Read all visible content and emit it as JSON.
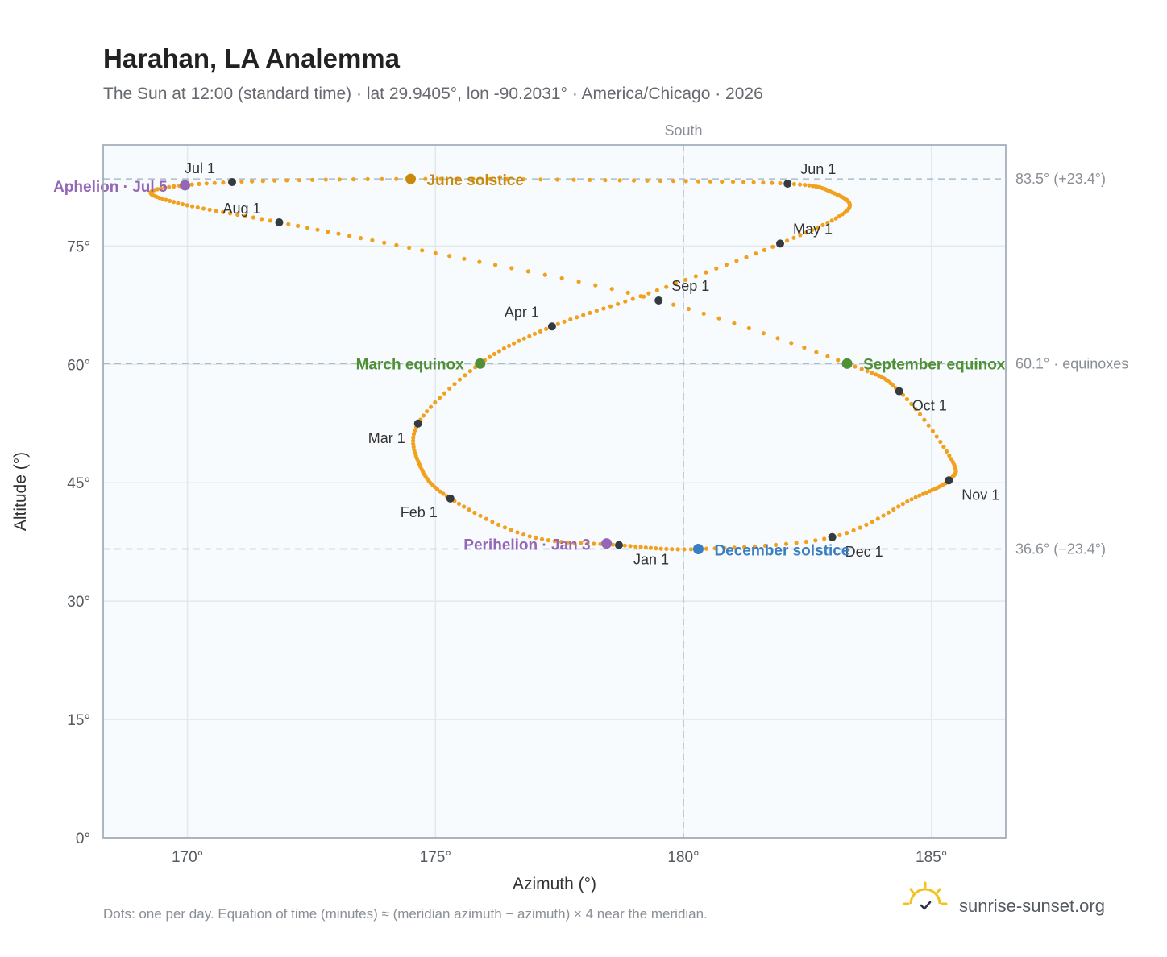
{
  "title": "Harahan, LA Analemma",
  "subtitle": "The Sun at 12:00 (standard time) · lat 29.9405°, lon -90.2031° · America/Chicago · 2026",
  "footnote": "Dots: one per day. Equation of time (minutes) ≈ (meridian azimuth − azimuth) × 4 near the meridian.",
  "brand": {
    "name": "sunrise-sunset.org",
    "icon": "sun-check-logo-icon"
  },
  "colors": {
    "curve": "#f2a11f",
    "month_marker": "#333a40",
    "june_solstice": "#c98a0c",
    "december_solstice": "#3a7ec2",
    "equinox": "#4f8f35",
    "apsis": "#9466b6",
    "plot_bg": "#f8fbfd",
    "grid": "#e1e8ee",
    "ref_line": "#a9bccb"
  },
  "chart_data": {
    "type": "scatter",
    "xlabel": "Azimuth (°)",
    "ylabel": "Altitude (°)",
    "xlim": [
      168.3,
      186.5
    ],
    "ylim": [
      0,
      87.8
    ],
    "x_ticks": [
      170,
      175,
      180,
      185
    ],
    "x_tick_labels": [
      "170°",
      "175°",
      "180°",
      "185°"
    ],
    "y_ticks": [
      0,
      15,
      30,
      45,
      60,
      75
    ],
    "y_tick_labels": [
      "0°",
      "15°",
      "30°",
      "45°",
      "60°",
      "75°"
    ],
    "grid": true,
    "meridian": {
      "azimuth": 180,
      "label": "South"
    },
    "reference_lines": [
      {
        "altitude": 83.5,
        "label": "83.5° (+23.4°)"
      },
      {
        "altitude": 60.1,
        "label": "60.1° · equinoxes"
      },
      {
        "altitude": 36.6,
        "label": "36.6° (−23.4°)"
      }
    ],
    "series": [
      {
        "points": [
          [
            178.7,
            37.1
          ],
          [
            176.9,
            38.2
          ],
          [
            175.3,
            43.0
          ],
          [
            174.7,
            47.0
          ],
          [
            174.65,
            52.5
          ],
          [
            175.9,
            60.1
          ],
          [
            177.35,
            64.8
          ],
          [
            179.3,
            69.0
          ],
          [
            181.95,
            75.3
          ],
          [
            183.3,
            79.5
          ],
          [
            183.0,
            81.8
          ],
          [
            182.1,
            82.9
          ],
          [
            179.0,
            83.3
          ],
          [
            174.5,
            83.5
          ],
          [
            170.9,
            83.1
          ],
          [
            169.3,
            82.0
          ],
          [
            169.9,
            80.3
          ],
          [
            171.85,
            78.0
          ],
          [
            175.0,
            74.1
          ],
          [
            179.5,
            68.1
          ],
          [
            183.3,
            60.1
          ],
          [
            184.35,
            56.6
          ],
          [
            185.4,
            48.0
          ],
          [
            185.35,
            45.3
          ],
          [
            184.6,
            42.9
          ],
          [
            183.0,
            38.1
          ],
          [
            180.3,
            36.6
          ],
          [
            178.7,
            37.1
          ]
        ]
      }
    ],
    "month_markers": [
      {
        "label": "Jan 1",
        "x": 178.7,
        "y": 37.1
      },
      {
        "label": "Feb 1",
        "x": 175.3,
        "y": 43.0
      },
      {
        "label": "Mar 1",
        "x": 174.65,
        "y": 52.5
      },
      {
        "label": "Apr 1",
        "x": 177.35,
        "y": 64.8
      },
      {
        "label": "May 1",
        "x": 181.95,
        "y": 75.3
      },
      {
        "label": "Jun 1",
        "x": 182.1,
        "y": 82.9
      },
      {
        "label": "Jul 1",
        "x": 170.9,
        "y": 83.1
      },
      {
        "label": "Aug 1",
        "x": 171.85,
        "y": 78.0
      },
      {
        "label": "Sep 1",
        "x": 179.5,
        "y": 68.1
      },
      {
        "label": "Oct 1",
        "x": 184.35,
        "y": 56.6
      },
      {
        "label": "Nov 1",
        "x": 185.35,
        "y": 45.3
      },
      {
        "label": "Dec 1",
        "x": 183.0,
        "y": 38.1
      }
    ],
    "events": [
      {
        "label": "June solstice",
        "x": 174.5,
        "y": 83.5,
        "color_key": "june_solstice"
      },
      {
        "label": "December solstice",
        "x": 180.3,
        "y": 36.6,
        "color_key": "december_solstice"
      },
      {
        "label": "March equinox",
        "x": 175.9,
        "y": 60.1,
        "color_key": "equinox"
      },
      {
        "label": "September equinox",
        "x": 183.3,
        "y": 60.1,
        "color_key": "equinox"
      },
      {
        "label": "Aphelion · Jul 5",
        "x": 169.95,
        "y": 82.7,
        "color_key": "apsis"
      },
      {
        "label": "Perihelion · Jan 3",
        "x": 178.45,
        "y": 37.3,
        "color_key": "apsis"
      }
    ]
  }
}
